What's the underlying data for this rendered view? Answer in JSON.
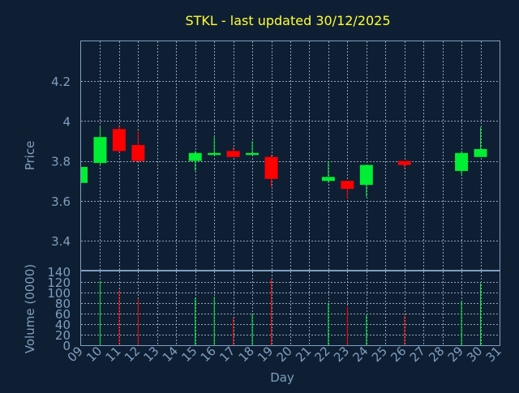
{
  "chart_data": {
    "type": "candlestick",
    "title": "STKL - last updated 30/12/2025",
    "xlabel": "Day",
    "ylabel_price": "Price",
    "ylabel_volume": "Volume (0000)",
    "x_tick_labels": [
      "09",
      "10",
      "11",
      "12",
      "13",
      "14",
      "15",
      "16",
      "17",
      "18",
      "19",
      "20",
      "21",
      "22",
      "23",
      "24",
      "25",
      "26",
      "27",
      "28",
      "29",
      "30",
      "31"
    ],
    "x_range": [
      9,
      31
    ],
    "price_ylim": [
      3.25,
      4.4
    ],
    "price_ticks": [
      3.4,
      3.6,
      3.8,
      4.0,
      4.2
    ],
    "price_tick_labels": [
      "3.4",
      "3.6",
      "3.8",
      "4",
      "4.2"
    ],
    "volume_ylim": [
      0,
      140
    ],
    "volume_ticks": [
      0,
      20,
      40,
      60,
      80,
      100,
      120,
      140
    ],
    "volume_tick_labels": [
      "0",
      "20",
      "40",
      "60",
      "80",
      "100",
      "120",
      "140"
    ],
    "grid": true,
    "colors": {
      "background": "#0f1f33",
      "frame": "#7f9fbf",
      "grid": "#8fa5bd",
      "title": "#ffff33",
      "label": "#7f9fbf",
      "up": "#00ee33",
      "down": "#ff0000"
    },
    "candles": [
      {
        "day": 9,
        "open": 3.69,
        "high": 3.77,
        "low": 3.69,
        "close": 3.77,
        "volume": 0
      },
      {
        "day": 10,
        "open": 3.79,
        "high": 3.97,
        "low": 3.78,
        "close": 3.92,
        "volume": 122
      },
      {
        "day": 11,
        "open": 3.96,
        "high": 3.98,
        "low": 3.84,
        "close": 3.85,
        "volume": 104
      },
      {
        "day": 12,
        "open": 3.88,
        "high": 3.95,
        "low": 3.8,
        "close": 3.8,
        "volume": 88
      },
      {
        "day": 15,
        "open": 3.8,
        "high": 3.85,
        "low": 3.75,
        "close": 3.84,
        "volume": 90
      },
      {
        "day": 16,
        "open": 3.83,
        "high": 3.92,
        "low": 3.83,
        "close": 3.84,
        "volume": 92
      },
      {
        "day": 17,
        "open": 3.85,
        "high": 3.87,
        "low": 3.82,
        "close": 3.82,
        "volume": 52
      },
      {
        "day": 18,
        "open": 3.83,
        "high": 3.9,
        "low": 3.83,
        "close": 3.84,
        "volume": 60
      },
      {
        "day": 19,
        "open": 3.82,
        "high": 3.83,
        "low": 3.67,
        "close": 3.71,
        "volume": 126
      },
      {
        "day": 22,
        "open": 3.7,
        "high": 3.8,
        "low": 3.69,
        "close": 3.72,
        "volume": 80
      },
      {
        "day": 23,
        "open": 3.7,
        "high": 3.7,
        "low": 3.61,
        "close": 3.66,
        "volume": 73
      },
      {
        "day": 24,
        "open": 3.68,
        "high": 3.78,
        "low": 3.62,
        "close": 3.78,
        "volume": 57
      },
      {
        "day": 26,
        "open": 3.8,
        "high": 3.8,
        "low": 3.76,
        "close": 3.78,
        "volume": 56
      },
      {
        "day": 29,
        "open": 3.75,
        "high": 3.85,
        "low": 3.73,
        "close": 3.84,
        "volume": 83
      },
      {
        "day": 30,
        "open": 3.82,
        "high": 3.97,
        "low": 3.82,
        "close": 3.86,
        "volume": 118
      }
    ]
  }
}
